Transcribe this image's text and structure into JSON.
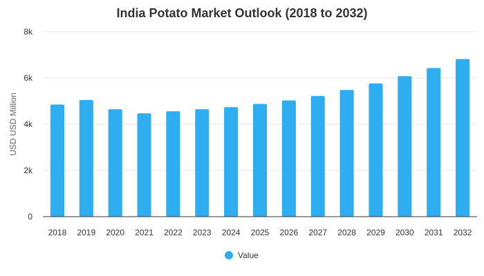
{
  "chart_data": {
    "type": "bar",
    "title": "India Potato Market Outlook (2018 to 2032)",
    "xlabel": "",
    "ylabel": "USD USD Million",
    "categories": [
      "2018",
      "2019",
      "2020",
      "2021",
      "2022",
      "2023",
      "2024",
      "2025",
      "2026",
      "2027",
      "2028",
      "2029",
      "2030",
      "2031",
      "2032"
    ],
    "series": [
      {
        "name": "Value",
        "values": [
          4850,
          5050,
          4650,
          4470,
          4560,
          4650,
          4740,
          4880,
          5030,
          5220,
          5480,
          5760,
          6080,
          6430,
          6820
        ]
      }
    ],
    "ylim": [
      0,
      8000
    ],
    "yticks": [
      0,
      2000,
      4000,
      6000,
      8000
    ],
    "ytick_labels": [
      "0",
      "2k",
      "4k",
      "6k",
      "8k"
    ],
    "grid": true,
    "legend_position": "bottom",
    "colors": {
      "bar": "#2eaef0"
    }
  }
}
